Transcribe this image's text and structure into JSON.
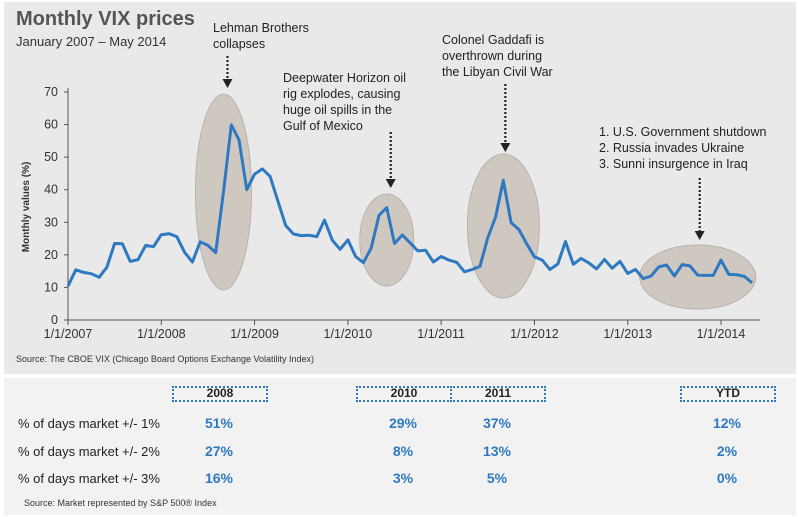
{
  "header": {
    "title": "Monthly VIX prices",
    "subtitle": "January 2007 – May 2014"
  },
  "chart_source": "Source: The CBOE VIX (Chicago Board Options Exchange Volatility Index)",
  "chart_data": {
    "type": "line",
    "title": "Monthly VIX prices",
    "subtitle": "January 2007 – May 2014",
    "ylabel": "Monthly values (%)",
    "xlabel": "",
    "ylim": [
      0,
      70
    ],
    "yticks": [
      0,
      10,
      20,
      30,
      40,
      50,
      60,
      70
    ],
    "xticks": [
      "1/1/2007",
      "1/1/2008",
      "1/1/2009",
      "1/1/2010",
      "1/1/2011",
      "1/1/2012",
      "1/1/2013",
      "1/1/2014"
    ],
    "x_start": "2007-01",
    "x_end": "2014-05",
    "series_color": "#2e79c1",
    "values": [
      10.4,
      15.4,
      14.6,
      14.2,
      13.1,
      16.2,
      23.5,
      23.4,
      18.0,
      18.5,
      22.9,
      22.5,
      26.2,
      26.5,
      25.6,
      20.8,
      17.8,
      24.0,
      22.9,
      20.7,
      39.4,
      59.9,
      55.3,
      40.0,
      44.8,
      46.4,
      44.1,
      36.5,
      29.0,
      26.4,
      25.9,
      26.0,
      25.6,
      30.7,
      24.5,
      21.7,
      24.6,
      19.5,
      17.6,
      22.1,
      32.1,
      34.5,
      23.5,
      26.1,
      23.7,
      21.2,
      21.4,
      17.8,
      19.5,
      18.4,
      17.7,
      14.8,
      15.5,
      16.5,
      25.3,
      31.6,
      42.9,
      29.9,
      27.8,
      23.4,
      19.4,
      18.4,
      15.5,
      17.2,
      24.1,
      17.1,
      18.9,
      17.5,
      15.7,
      18.6,
      15.9,
      18.0,
      14.3,
      15.5,
      12.7,
      13.5,
      16.3,
      16.9,
      13.5,
      17.0,
      16.6,
      13.8,
      13.7,
      13.7,
      18.4,
      14.0,
      13.9,
      13.4,
      11.4
    ],
    "annotations": [
      {
        "lines": [
          "Lehman Brothers",
          "collapses"
        ]
      },
      {
        "lines": [
          "Deepwater Horizon oil",
          "rig explodes, causing",
          "huge oil spills in the",
          "Gulf of Mexico"
        ]
      },
      {
        "lines": [
          "Colonel Gaddafi is",
          "overthrown during",
          "the Libyan Civil War"
        ]
      },
      {
        "lines": [
          "1. U.S. Government shutdown",
          "2. Russia invades Ukraine",
          "3. Sunni insurgence in Iraq"
        ]
      }
    ]
  },
  "table": {
    "columns": [
      "2008",
      "2010",
      "2011",
      "YTD"
    ],
    "rows": [
      {
        "label": "% of days market +/- 1%",
        "values": [
          "51%",
          "29%",
          "37%",
          "12%"
        ]
      },
      {
        "label": "% of days market +/- 2%",
        "values": [
          "27%",
          "8%",
          "13%",
          "2%"
        ]
      },
      {
        "label": "% of days market +/- 3%",
        "values": [
          "16%",
          "3%",
          "5%",
          "0%"
        ]
      }
    ],
    "source": "Source: Market represented by S&P 500® Index"
  }
}
